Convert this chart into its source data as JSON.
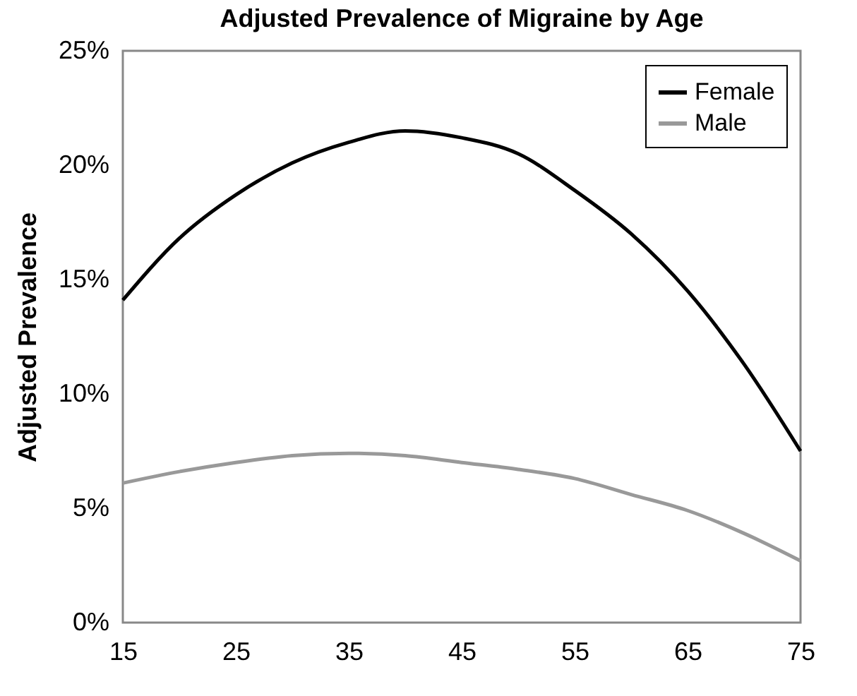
{
  "chart_data": {
    "type": "line",
    "title": "Adjusted Prevalence of Migraine by Age",
    "ylabel": "Adjusted Prevalence",
    "x": [
      15,
      20,
      25,
      30,
      35,
      40,
      45,
      50,
      55,
      60,
      65,
      70,
      75
    ],
    "series": [
      {
        "name": "Female",
        "color": "#000000",
        "values": [
          14.1,
          16.8,
          18.7,
          20.1,
          21.0,
          21.5,
          21.2,
          20.5,
          18.9,
          17.0,
          14.5,
          11.3,
          7.5
        ]
      },
      {
        "name": "Male",
        "color": "#999999",
        "values": [
          6.1,
          6.6,
          7.0,
          7.3,
          7.4,
          7.3,
          7.0,
          6.7,
          6.3,
          5.6,
          4.9,
          3.9,
          2.7
        ]
      }
    ],
    "xlim": [
      15,
      75
    ],
    "xticks": [
      15,
      25,
      35,
      45,
      55,
      65,
      75
    ],
    "ylim": [
      0,
      25
    ],
    "yticks": [
      {
        "value": 0,
        "label": "0%"
      },
      {
        "value": 5,
        "label": "5%"
      },
      {
        "value": 10,
        "label": "10%"
      },
      {
        "value": 15,
        "label": "15%"
      },
      {
        "value": 20,
        "label": "20%"
      },
      {
        "value": 25,
        "label": "25%"
      }
    ],
    "grid": false,
    "legend": "top right",
    "marker": "none",
    "line_style": "solid"
  }
}
